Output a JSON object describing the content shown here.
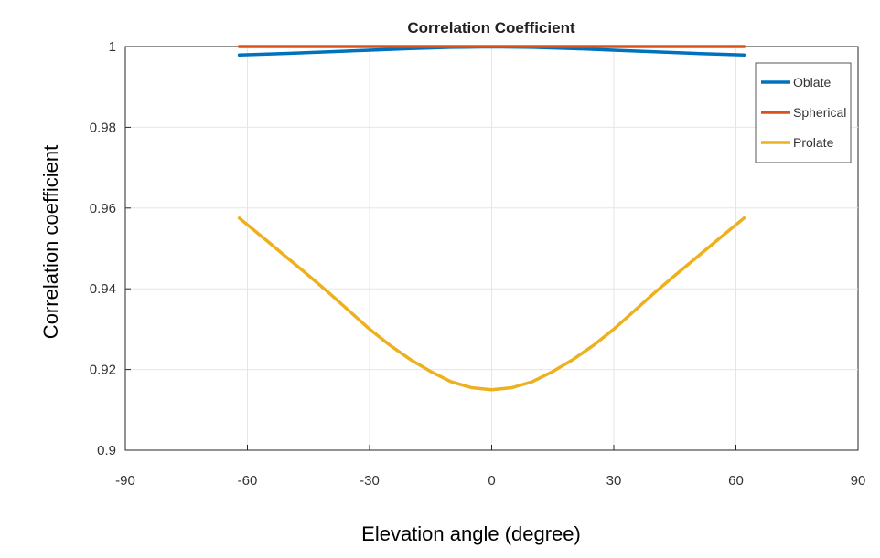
{
  "chart_data": {
    "type": "line",
    "title": "Correlation Coefficient",
    "xlabel": "Elevation angle (degree)",
    "ylabel": "Correlation coefficient",
    "xlim": [
      -90,
      90
    ],
    "ylim": [
      0.9,
      1.0
    ],
    "xticks": [
      -90,
      -60,
      -30,
      0,
      30,
      60,
      90
    ],
    "xtick_labels": [
      "-90",
      "-60",
      "-30",
      "0",
      "30",
      "60",
      "90"
    ],
    "yticks": [
      0.9,
      0.92,
      0.94,
      0.96,
      0.98,
      1.0
    ],
    "ytick_labels": [
      "0.9",
      "0.92",
      "0.94",
      "0.96",
      "0.98",
      "1"
    ],
    "grid": true,
    "legend_position": "top-right",
    "series": [
      {
        "name": "Oblate",
        "color": "#0072BD",
        "x": [
          -62,
          -50,
          -40,
          -30,
          -20,
          -10,
          0,
          10,
          20,
          30,
          40,
          50,
          62
        ],
        "y": [
          0.9979,
          0.9983,
          0.9987,
          0.9991,
          0.9995,
          0.9998,
          0.9999,
          0.9998,
          0.9995,
          0.9991,
          0.9987,
          0.9983,
          0.9979
        ]
      },
      {
        "name": "Spherical",
        "color": "#D95319",
        "x": [
          -62,
          0,
          62
        ],
        "y": [
          1.0,
          1.0,
          1.0
        ]
      },
      {
        "name": "Prolate",
        "color": "#EDB120",
        "x": [
          -62,
          -55,
          -50,
          -45,
          -40,
          -35,
          -30,
          -25,
          -20,
          -15,
          -10,
          -5,
          0,
          5,
          10,
          15,
          20,
          25,
          30,
          35,
          40,
          45,
          50,
          55,
          62
        ],
        "y": [
          0.9575,
          0.9517,
          0.9475,
          0.9433,
          0.939,
          0.9345,
          0.93,
          0.926,
          0.9225,
          0.9195,
          0.917,
          0.9155,
          0.915,
          0.9155,
          0.917,
          0.9195,
          0.9225,
          0.926,
          0.93,
          0.9345,
          0.939,
          0.9433,
          0.9475,
          0.9517,
          0.9575
        ]
      }
    ]
  }
}
